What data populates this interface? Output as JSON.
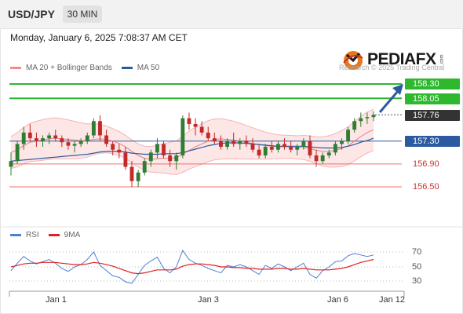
{
  "header": {
    "symbol": "USD/JPY",
    "timeframe": "30 MIN"
  },
  "datetime": "Monday, January 6, 2025 7:08:37 AM CET",
  "legend": {
    "bollinger": {
      "label": "MA 20 + Bollinger Bands",
      "color": "#f08c8c"
    },
    "ma50": {
      "label": "MA 50",
      "color": "#2c5aa0"
    }
  },
  "brand": {
    "name": "PEDIAFX",
    "suffix": ".com",
    "copyright": "Research © 2025 Trading Central"
  },
  "levels": [
    {
      "label": "158.30",
      "style": "green"
    },
    {
      "label": "158.05",
      "style": "green"
    },
    {
      "label": "157.76",
      "style": "current"
    },
    {
      "label": "157.30",
      "style": "blue"
    },
    {
      "label": "156.90",
      "style": "red"
    },
    {
      "label": "156.50",
      "style": "red"
    }
  ],
  "rsi_legend": {
    "rsi": {
      "label": "RSI",
      "color": "#4a7fd4"
    },
    "ma9": {
      "label": "9MA",
      "color": "#e02020"
    }
  },
  "rsi_axis": [
    "70",
    "50",
    "30"
  ],
  "x_labels": [
    "Jan 1",
    "Jan 3",
    "Jan 6",
    "Jan 12"
  ],
  "colors": {
    "up": "#2e7d32",
    "down": "#c62828",
    "support_green": "#2db82d",
    "resistance_red": "#f07070",
    "pivot_blue": "#2c5aa0"
  },
  "chart_data": {
    "type": "candlestick",
    "price_levels": [
      158.3,
      158.05,
      157.76,
      157.3,
      156.9,
      156.5
    ],
    "ohlc": [
      {
        "o": 156.85,
        "h": 157.1,
        "l": 156.7,
        "c": 156.95
      },
      {
        "o": 156.95,
        "h": 157.3,
        "l": 156.9,
        "c": 157.25
      },
      {
        "o": 157.25,
        "h": 157.55,
        "l": 157.15,
        "c": 157.45
      },
      {
        "o": 157.45,
        "h": 157.6,
        "l": 157.3,
        "c": 157.35
      },
      {
        "o": 157.35,
        "h": 157.45,
        "l": 157.2,
        "c": 157.3
      },
      {
        "o": 157.3,
        "h": 157.4,
        "l": 157.2,
        "c": 157.35
      },
      {
        "o": 157.35,
        "h": 157.45,
        "l": 157.25,
        "c": 157.4
      },
      {
        "o": 157.4,
        "h": 157.5,
        "l": 157.3,
        "c": 157.35
      },
      {
        "o": 157.35,
        "h": 157.4,
        "l": 157.2,
        "c": 157.28
      },
      {
        "o": 157.28,
        "h": 157.35,
        "l": 157.15,
        "c": 157.22
      },
      {
        "o": 157.22,
        "h": 157.3,
        "l": 157.1,
        "c": 157.25
      },
      {
        "o": 157.25,
        "h": 157.35,
        "l": 157.2,
        "c": 157.3
      },
      {
        "o": 157.3,
        "h": 157.45,
        "l": 157.25,
        "c": 157.4
      },
      {
        "o": 157.4,
        "h": 157.7,
        "l": 157.35,
        "c": 157.65
      },
      {
        "o": 157.65,
        "h": 157.75,
        "l": 157.3,
        "c": 157.4
      },
      {
        "o": 157.4,
        "h": 157.5,
        "l": 157.2,
        "c": 157.25
      },
      {
        "o": 157.25,
        "h": 157.3,
        "l": 157.05,
        "c": 157.15
      },
      {
        "o": 157.15,
        "h": 157.25,
        "l": 157.0,
        "c": 157.1
      },
      {
        "o": 157.1,
        "h": 157.2,
        "l": 156.8,
        "c": 156.85
      },
      {
        "o": 156.85,
        "h": 156.95,
        "l": 156.5,
        "c": 156.6
      },
      {
        "o": 156.6,
        "h": 156.8,
        "l": 156.5,
        "c": 156.75
      },
      {
        "o": 156.75,
        "h": 157.0,
        "l": 156.7,
        "c": 156.95
      },
      {
        "o": 156.95,
        "h": 157.15,
        "l": 156.85,
        "c": 157.1
      },
      {
        "o": 157.1,
        "h": 157.35,
        "l": 157.0,
        "c": 157.25
      },
      {
        "o": 157.25,
        "h": 157.3,
        "l": 157.0,
        "c": 157.05
      },
      {
        "o": 157.05,
        "h": 157.15,
        "l": 156.85,
        "c": 156.95
      },
      {
        "o": 156.95,
        "h": 157.1,
        "l": 156.8,
        "c": 157.05
      },
      {
        "o": 157.05,
        "h": 157.75,
        "l": 157.0,
        "c": 157.7
      },
      {
        "o": 157.7,
        "h": 157.8,
        "l": 157.5,
        "c": 157.6
      },
      {
        "o": 157.6,
        "h": 157.7,
        "l": 157.4,
        "c": 157.55
      },
      {
        "o": 157.55,
        "h": 157.65,
        "l": 157.4,
        "c": 157.45
      },
      {
        "o": 157.45,
        "h": 157.55,
        "l": 157.3,
        "c": 157.35
      },
      {
        "o": 157.35,
        "h": 157.45,
        "l": 157.25,
        "c": 157.3
      },
      {
        "o": 157.3,
        "h": 157.4,
        "l": 157.15,
        "c": 157.2
      },
      {
        "o": 157.2,
        "h": 157.35,
        "l": 157.15,
        "c": 157.3
      },
      {
        "o": 157.3,
        "h": 157.45,
        "l": 157.2,
        "c": 157.25
      },
      {
        "o": 157.25,
        "h": 157.35,
        "l": 157.15,
        "c": 157.3
      },
      {
        "o": 157.3,
        "h": 157.4,
        "l": 157.2,
        "c": 157.25
      },
      {
        "o": 157.25,
        "h": 157.35,
        "l": 157.1,
        "c": 157.15
      },
      {
        "o": 157.15,
        "h": 157.25,
        "l": 157.0,
        "c": 157.05
      },
      {
        "o": 157.05,
        "h": 157.25,
        "l": 157.0,
        "c": 157.2
      },
      {
        "o": 157.2,
        "h": 157.3,
        "l": 157.1,
        "c": 157.15
      },
      {
        "o": 157.15,
        "h": 157.3,
        "l": 157.1,
        "c": 157.25
      },
      {
        "o": 157.25,
        "h": 157.35,
        "l": 157.15,
        "c": 157.2
      },
      {
        "o": 157.2,
        "h": 157.3,
        "l": 157.1,
        "c": 157.15
      },
      {
        "o": 157.15,
        "h": 157.25,
        "l": 157.05,
        "c": 157.2
      },
      {
        "o": 157.2,
        "h": 157.35,
        "l": 157.15,
        "c": 157.3
      },
      {
        "o": 157.3,
        "h": 157.4,
        "l": 157.0,
        "c": 157.05
      },
      {
        "o": 157.05,
        "h": 157.15,
        "l": 156.85,
        "c": 156.95
      },
      {
        "o": 156.95,
        "h": 157.1,
        "l": 156.9,
        "c": 157.05
      },
      {
        "o": 157.05,
        "h": 157.15,
        "l": 157.0,
        "c": 157.1
      },
      {
        "o": 157.1,
        "h": 157.3,
        "l": 157.05,
        "c": 157.25
      },
      {
        "o": 157.25,
        "h": 157.35,
        "l": 157.15,
        "c": 157.3
      },
      {
        "o": 157.3,
        "h": 157.55,
        "l": 157.25,
        "c": 157.5
      },
      {
        "o": 157.5,
        "h": 157.7,
        "l": 157.45,
        "c": 157.65
      },
      {
        "o": 157.65,
        "h": 157.8,
        "l": 157.55,
        "c": 157.7
      },
      {
        "o": 157.7,
        "h": 157.8,
        "l": 157.6,
        "c": 157.72
      },
      {
        "o": 157.72,
        "h": 157.82,
        "l": 157.65,
        "c": 157.76
      }
    ],
    "ma20": [
      157.1,
      157.15,
      157.22,
      157.28,
      157.3,
      157.32,
      157.34,
      157.35,
      157.34,
      157.33,
      157.32,
      157.31,
      157.31,
      157.33,
      157.34,
      157.33,
      157.3,
      157.26,
      157.2,
      157.12,
      157.05,
      157.0,
      156.98,
      156.99,
      157.0,
      157.0,
      157.01,
      157.07,
      157.14,
      157.2,
      157.25,
      157.3,
      157.33,
      157.34,
      157.33,
      157.32,
      157.3,
      157.28,
      157.26,
      157.24,
      157.22,
      157.21,
      157.2,
      157.2,
      157.2,
      157.19,
      157.19,
      157.17,
      157.14,
      157.12,
      157.12,
      157.14,
      157.17,
      157.22,
      157.3,
      157.38,
      157.45,
      157.5
    ],
    "ma50": [
      156.95,
      156.96,
      156.97,
      156.98,
      156.99,
      157.0,
      157.01,
      157.02,
      157.03,
      157.04,
      157.05,
      157.06,
      157.07,
      157.09,
      157.11,
      157.12,
      157.12,
      157.12,
      157.11,
      157.09,
      157.08,
      157.07,
      157.07,
      157.07,
      157.08,
      157.08,
      157.08,
      157.1,
      157.13,
      157.16,
      157.19,
      157.22,
      157.24,
      157.26,
      157.27,
      157.27,
      157.27,
      157.26,
      157.25,
      157.24,
      157.23,
      157.22,
      157.21,
      157.21,
      157.21,
      157.21,
      157.21,
      157.2,
      157.19,
      157.18,
      157.18,
      157.18,
      157.19,
      157.21,
      157.24,
      157.28,
      157.31,
      157.35
    ],
    "rsi": [
      45,
      55,
      64,
      58,
      54,
      57,
      60,
      55,
      48,
      44,
      50,
      53,
      60,
      70,
      52,
      45,
      38,
      36,
      30,
      28,
      40,
      52,
      58,
      63,
      48,
      42,
      50,
      72,
      60,
      55,
      52,
      48,
      45,
      42,
      52,
      50,
      53,
      50,
      45,
      40,
      52,
      48,
      54,
      50,
      45,
      50,
      55,
      40,
      35,
      45,
      50,
      57,
      58,
      65,
      68,
      66,
      64,
      66
    ],
    "rsi_ma9": [
      50,
      52,
      54,
      55,
      55,
      56,
      56,
      56,
      55,
      54,
      53,
      53,
      54,
      56,
      55,
      53,
      51,
      48,
      45,
      42,
      41,
      42,
      44,
      46,
      46,
      46,
      47,
      51,
      53,
      54,
      54,
      53,
      52,
      50,
      50,
      49,
      49,
      48,
      48,
      47,
      47,
      47,
      48,
      48,
      47,
      47,
      48,
      47,
      46,
      46,
      46,
      47,
      48,
      50,
      53,
      56,
      58,
      60
    ],
    "x_ticks": [
      "Jan 1",
      "Jan 3",
      "Jan 6",
      "Jan 12"
    ],
    "rsi_levels": [
      70,
      50,
      30
    ],
    "legend": [
      "MA 20 + Bollinger Bands",
      "MA 50"
    ]
  }
}
